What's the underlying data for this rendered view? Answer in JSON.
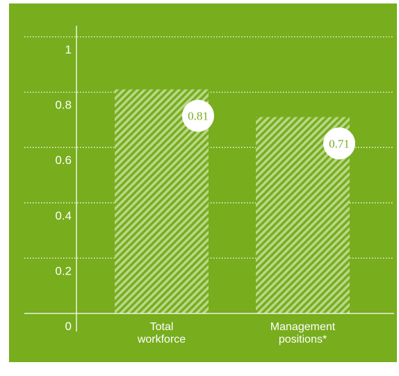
{
  "colors": {
    "background": "#78ad1e",
    "bar_stripe": "#b9d88a",
    "bar_base": "#78ad1e",
    "axis": "#ffffff",
    "label_bubble": "#ffffff",
    "label_text": "#78ad1e"
  },
  "chart_data": {
    "type": "bar",
    "categories": [
      [
        "Total",
        "workforce"
      ],
      [
        "Management",
        "positions*"
      ]
    ],
    "values": [
      0.81,
      0.71
    ],
    "data_labels": [
      "0.81",
      "0.71"
    ],
    "ylim": [
      0,
      1
    ],
    "yticks": [
      0,
      0.2,
      0.4,
      0.6,
      0.8,
      1
    ],
    "ytick_labels": [
      "0",
      "0.2",
      "0.4",
      "0.6",
      "0.8",
      "1"
    ],
    "grid": true,
    "grid_style": "dotted",
    "bar_fill": "diagonal-hatch"
  }
}
